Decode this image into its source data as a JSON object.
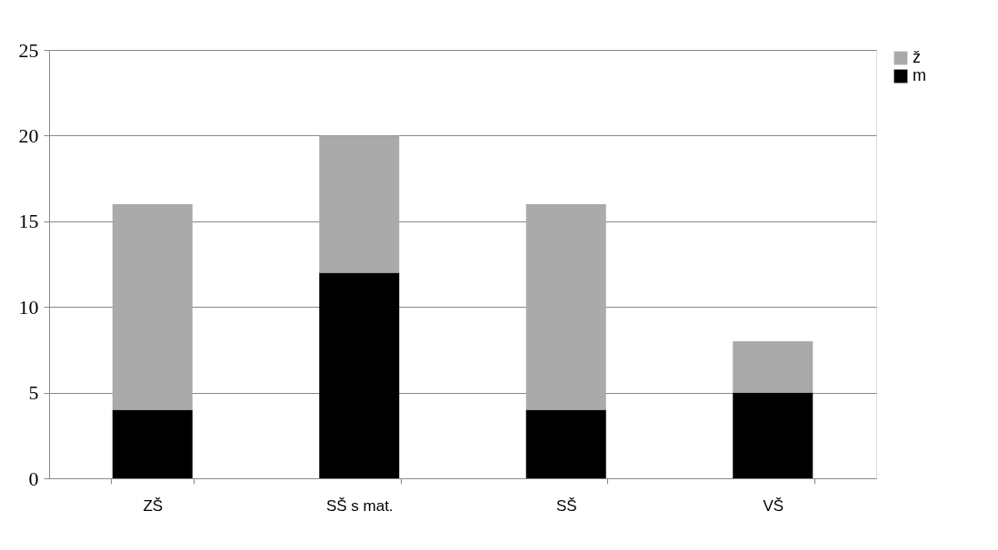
{
  "chart_data": {
    "type": "bar",
    "stacked": true,
    "categories": [
      "ZŠ",
      "SŠ s mat.",
      "SŠ",
      "VŠ"
    ],
    "series": [
      {
        "name": "m",
        "color": "#000000",
        "values": [
          4,
          12,
          4,
          5
        ]
      },
      {
        "name": "ž",
        "color": "#aaaaaa",
        "values": [
          12,
          8,
          12,
          3
        ]
      }
    ],
    "ylim": [
      0,
      25
    ],
    "yticks": [
      0,
      5,
      10,
      15,
      20,
      25
    ],
    "grid": "y",
    "legend": "right"
  }
}
